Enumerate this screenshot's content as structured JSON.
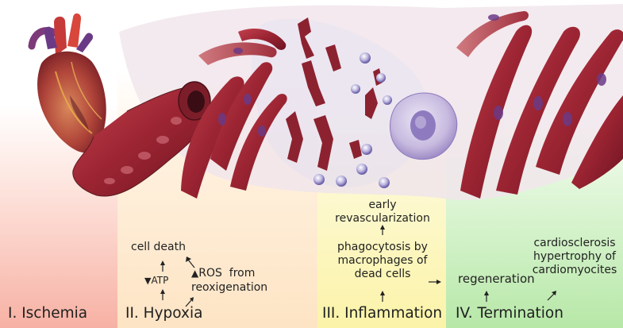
{
  "stages": [
    {
      "title": "I. Ischemia"
    },
    {
      "title": "II. Hypoxia"
    },
    {
      "title": "III. Inflammation"
    },
    {
      "title": "IV. Termination"
    }
  ],
  "hypoxia": {
    "cell_death": "cell death",
    "atp": "ATP",
    "atp_marker": "▼",
    "ros": "ROS  from",
    "ros_marker": "▲",
    "reoxygenation": "reoxigenation"
  },
  "inflammation": {
    "revasc_line1": "early",
    "revasc_line2": "revascularization",
    "phago_line1": "phagocytosis by",
    "phago_line2": "macrophages of",
    "phago_line3": "dead cells"
  },
  "termination": {
    "regeneration": "regeneration",
    "cardio_line1": "cardiosclerosis",
    "cardio_line2": "hypertrophy of",
    "cardio_line3": "cardiomyocites"
  },
  "colors": {
    "ischemia": "#f7b1a4",
    "hypoxia": "#fde4c4",
    "inflammation": "#fbf3a8",
    "termination": "#b7e8a8",
    "muscle": "#9b2432",
    "macrophage": "#b6a6d6"
  },
  "icons": [
    "heart-icon",
    "artery-icon",
    "myocyte-icon",
    "macrophage-icon",
    "lymphocyte-icon"
  ]
}
